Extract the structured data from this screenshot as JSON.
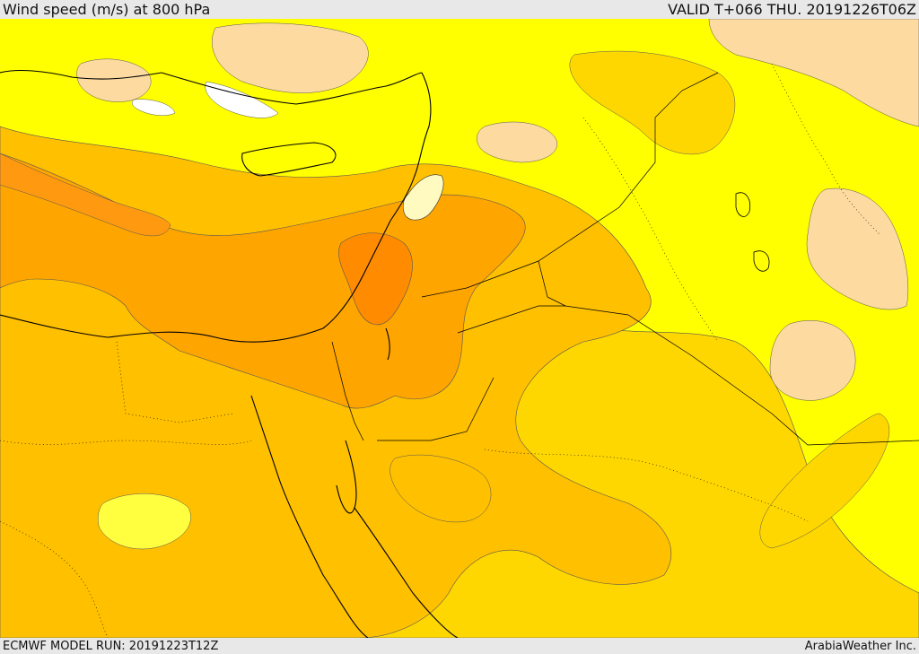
{
  "header": {
    "title": "Wind speed (m/s) at 800 hPa",
    "valid": "VALID T+066 THU. 20191226T06Z"
  },
  "footer": {
    "model_run": "ECMWF MODEL RUN: 20191223T12Z",
    "credit": "ArabiaWeather Inc."
  },
  "map": {
    "colors": {
      "background": "#ffff00",
      "light": "#ffe566",
      "gold": "#ffd700",
      "amber": "#ffc000",
      "orange": "#ffa500",
      "dark_orange": "#ff8c00",
      "peach": "#fddaa0",
      "white": "#ffffff",
      "coast": "#000000"
    }
  }
}
